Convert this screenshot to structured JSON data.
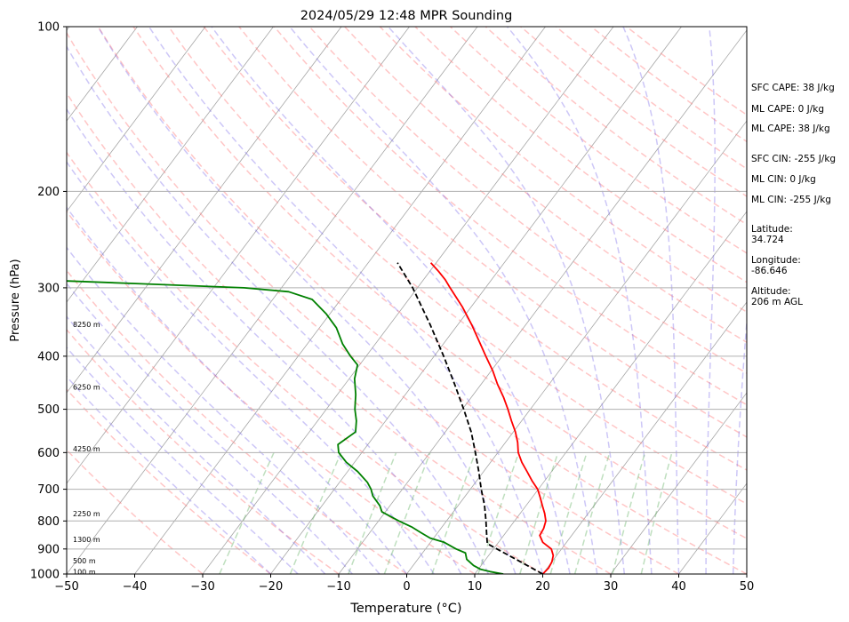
{
  "chart_data": {
    "type": "line",
    "subtype": "skew-t log-p",
    "title": "2024/05/29 12:48 MPR Sounding",
    "xlabel": "Temperature (°C)",
    "ylabel": "Pressure (hPa)",
    "xlim": [
      -50,
      50
    ],
    "ylim": [
      1000,
      100
    ],
    "y_scale": "log",
    "grid": true,
    "x_ticks": [
      "−50",
      "−40",
      "−30",
      "−20",
      "−10",
      "0",
      "10",
      "20",
      "30",
      "40",
      "50"
    ],
    "x_tick_values": [
      -50,
      -40,
      -30,
      -20,
      -10,
      0,
      10,
      20,
      30,
      40,
      50
    ],
    "y_ticks": [
      "100",
      "200",
      "300",
      "400",
      "500",
      "600",
      "700",
      "800",
      "900",
      "1000"
    ],
    "y_tick_values": [
      100,
      200,
      300,
      400,
      500,
      600,
      700,
      800,
      900,
      1000
    ],
    "height_labels": [
      {
        "text": "8250 m",
        "p": 350
      },
      {
        "text": "6250 m",
        "p": 455
      },
      {
        "text": "4250 m",
        "p": 590
      },
      {
        "text": "2250 m",
        "p": 775
      },
      {
        "text": "1300 m",
        "p": 865
      },
      {
        "text": "500 m",
        "p": 945
      },
      {
        "text": "100 m",
        "p": 990
      }
    ],
    "series": [
      {
        "key": "temperature",
        "color": "#ff0000",
        "style": "solid",
        "points": [
          [
            1000,
            20.0
          ],
          [
            975,
            20.2
          ],
          [
            950,
            20.0
          ],
          [
            925,
            19.5
          ],
          [
            900,
            18.5
          ],
          [
            875,
            16.5
          ],
          [
            850,
            15.3
          ],
          [
            825,
            15.1
          ],
          [
            800,
            14.6
          ],
          [
            775,
            13.6
          ],
          [
            750,
            12.4
          ],
          [
            725,
            11.2
          ],
          [
            700,
            9.9
          ],
          [
            675,
            8.1
          ],
          [
            650,
            6.4
          ],
          [
            625,
            4.6
          ],
          [
            600,
            3.0
          ],
          [
            575,
            1.8
          ],
          [
            550,
            0.3
          ],
          [
            525,
            -1.5
          ],
          [
            500,
            -3.3
          ],
          [
            475,
            -5.3
          ],
          [
            450,
            -7.6
          ],
          [
            425,
            -9.8
          ],
          [
            400,
            -12.4
          ],
          [
            375,
            -15.1
          ],
          [
            350,
            -18.0
          ],
          [
            325,
            -21.3
          ],
          [
            300,
            -25.2
          ],
          [
            290,
            -26.8
          ],
          [
            280,
            -28.7
          ],
          [
            270,
            -30.8
          ]
        ]
      },
      {
        "key": "dewpoint",
        "color": "#008000",
        "style": "solid",
        "points": [
          [
            1000,
            14.2
          ],
          [
            990,
            12.0
          ],
          [
            980,
            10.3
          ],
          [
            965,
            8.9
          ],
          [
            940,
            7.2
          ],
          [
            915,
            6.3
          ],
          [
            900,
            4.5
          ],
          [
            875,
            2.0
          ],
          [
            860,
            -0.5
          ],
          [
            840,
            -2.5
          ],
          [
            820,
            -4.5
          ],
          [
            800,
            -7.0
          ],
          [
            770,
            -10.5
          ],
          [
            750,
            -11.5
          ],
          [
            720,
            -13.6
          ],
          [
            700,
            -14.6
          ],
          [
            680,
            -15.9
          ],
          [
            650,
            -18.5
          ],
          [
            625,
            -21.2
          ],
          [
            600,
            -23.4
          ],
          [
            580,
            -24.4
          ],
          [
            550,
            -23.2
          ],
          [
            525,
            -24.3
          ],
          [
            500,
            -25.8
          ],
          [
            470,
            -27.3
          ],
          [
            440,
            -29.2
          ],
          [
            415,
            -30.3
          ],
          [
            400,
            -32.3
          ],
          [
            380,
            -34.8
          ],
          [
            355,
            -37.5
          ],
          [
            335,
            -40.5
          ],
          [
            315,
            -44.2
          ],
          [
            305,
            -48.5
          ],
          [
            300,
            -55.5
          ],
          [
            295,
            -71.0
          ],
          [
            290,
            -87.0
          ]
        ]
      },
      {
        "key": "parcel",
        "color": "#000000",
        "style": "dashed",
        "points": [
          [
            1000,
            20.0
          ],
          [
            950,
            15.4
          ],
          [
            900,
            10.5
          ],
          [
            880,
            8.5
          ],
          [
            850,
            7.5
          ],
          [
            800,
            5.8
          ],
          [
            750,
            3.9
          ],
          [
            700,
            1.6
          ],
          [
            650,
            -0.7
          ],
          [
            600,
            -3.3
          ],
          [
            550,
            -6.2
          ],
          [
            500,
            -9.8
          ],
          [
            450,
            -13.9
          ],
          [
            400,
            -18.6
          ],
          [
            350,
            -24.1
          ],
          [
            300,
            -30.7
          ],
          [
            270,
            -35.7
          ]
        ]
      }
    ],
    "background_lines": [
      {
        "key": "isotherms",
        "color": "#808080",
        "style": "solid"
      },
      {
        "key": "dry_adiabats",
        "color": "#ff8080",
        "style": "dashed"
      },
      {
        "key": "moist_adiabats",
        "color": "#6f5ee8",
        "style": "dashed"
      },
      {
        "key": "mixing_ratio_lines",
        "color": "#5fae5f",
        "style": "dashed"
      }
    ]
  },
  "side_panel": {
    "sfc_cape": "SFC CAPE: 38 J/kg",
    "ml_cape_1": "ML CAPE: 0 J/kg",
    "ml_cape_2": "ML CAPE: 38 J/kg",
    "sfc_cin": "SFC CIN: -255 J/kg",
    "ml_cin_1": "ML CIN: 0 J/kg",
    "ml_cin_2": "ML CIN: -255 J/kg",
    "latitude_label": "Latitude:",
    "latitude_value": "34.724",
    "longitude_label": "Longitude:",
    "longitude_value": "-86.646",
    "altitude_label": "Altitude:",
    "altitude_value": "206 m AGL"
  }
}
